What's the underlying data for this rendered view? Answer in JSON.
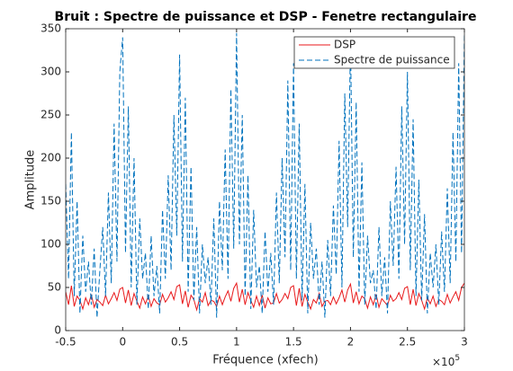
{
  "chart_data": {
    "type": "line",
    "title": "Bruit : Spectre de puissance et DSP - Fenetre rectangulaire",
    "xlabel": "Fréquence (xfech)",
    "ylabel": "Amplitude",
    "x_multiplier": {
      "base": "×10",
      "exponent": "5"
    },
    "xlim": [
      -0.5,
      3
    ],
    "xticks": [
      -0.5,
      0,
      0.5,
      1,
      1.5,
      2,
      2.5,
      3
    ],
    "ylim": [
      0,
      350
    ],
    "yticks": [
      0,
      50,
      100,
      150,
      200,
      250,
      300,
      350
    ],
    "legend": "top-right",
    "x": [
      -0.5,
      -0.475,
      -0.45,
      -0.425,
      -0.4,
      -0.375,
      -0.35,
      -0.325,
      -0.3,
      -0.275,
      -0.25,
      -0.225,
      -0.2,
      -0.175,
      -0.15,
      -0.125,
      -0.1,
      -0.075,
      -0.05,
      -0.025,
      0,
      0.025,
      0.05,
      0.075,
      0.1,
      0.125,
      0.15,
      0.175,
      0.2,
      0.225,
      0.25,
      0.275,
      0.3,
      0.325,
      0.35,
      0.375,
      0.4,
      0.425,
      0.45,
      0.475,
      0.5,
      0.525,
      0.55,
      0.575,
      0.6,
      0.625,
      0.65,
      0.675,
      0.7,
      0.725,
      0.75,
      0.775,
      0.8,
      0.825,
      0.85,
      0.875,
      0.9,
      0.925,
      0.95,
      0.975,
      1,
      1.025,
      1.05,
      1.075,
      1.1,
      1.125,
      1.15,
      1.175,
      1.2,
      1.225,
      1.25,
      1.275,
      1.3,
      1.325,
      1.35,
      1.375,
      1.4,
      1.425,
      1.45,
      1.475,
      1.5,
      1.525,
      1.55,
      1.575,
      1.6,
      1.625,
      1.65,
      1.675,
      1.7,
      1.725,
      1.75,
      1.775,
      1.8,
      1.825,
      1.85,
      1.875,
      1.9,
      1.925,
      1.95,
      1.975,
      2,
      2.025,
      2.05,
      2.075,
      2.1,
      2.125,
      2.15,
      2.175,
      2.2,
      2.225,
      2.25,
      2.275,
      2.3,
      2.325,
      2.35,
      2.375,
      2.4,
      2.425,
      2.45,
      2.475,
      2.5,
      2.525,
      2.55,
      2.575,
      2.6,
      2.625,
      2.65,
      2.675,
      2.7,
      2.725,
      2.75,
      2.775,
      2.8,
      2.825,
      2.85,
      2.875,
      2.9,
      2.925,
      2.95,
      2.975,
      3
    ],
    "series": [
      {
        "name": "DSP",
        "color": "#e8191b",
        "dash": false,
        "values": [
          45,
          30,
          52,
          28,
          40,
          35,
          25,
          38,
          30,
          42,
          27,
          36,
          33,
          29,
          41,
          31,
          37,
          44,
          35,
          48,
          50,
          32,
          47,
          29,
          43,
          34,
          26,
          39,
          31,
          40,
          28,
          37,
          32,
          30,
          42,
          33,
          38,
          45,
          36,
          51,
          53,
          31,
          46,
          27,
          41,
          36,
          24,
          37,
          33,
          44,
          29,
          35,
          34,
          28,
          40,
          30,
          39,
          46,
          34,
          49,
          55,
          33,
          48,
          30,
          44,
          35,
          27,
          40,
          29,
          41,
          26,
          38,
          31,
          32,
          43,
          32,
          36,
          43,
          37,
          50,
          52,
          29,
          49,
          28,
          42,
          33,
          25,
          36,
          32,
          43,
          28,
          34,
          35,
          30,
          39,
          31,
          38,
          47,
          33,
          47,
          54,
          32,
          45,
          31,
          40,
          37,
          26,
          39,
          30,
          42,
          27,
          37,
          33,
          29,
          41,
          34,
          37,
          44,
          36,
          49,
          51,
          30,
          48,
          29,
          43,
          35,
          25,
          38,
          31,
          40,
          28,
          36,
          34,
          30,
          42,
          32,
          39,
          45,
          35,
          50,
          55
        ]
      },
      {
        "name": "Spectre de puissance",
        "color": "#0072bd",
        "dash": true,
        "values": [
          170,
          60,
          230,
          40,
          150,
          20,
          110,
          45,
          80,
          30,
          95,
          15,
          70,
          120,
          40,
          160,
          55,
          240,
          80,
          300,
          340,
          90,
          260,
          50,
          200,
          30,
          130,
          60,
          90,
          25,
          110,
          40,
          75,
          20,
          140,
          60,
          180,
          70,
          250,
          110,
          320,
          80,
          270,
          45,
          190,
          35,
          120,
          20,
          100,
          55,
          85,
          30,
          130,
          15,
          150,
          70,
          210,
          60,
          280,
          95,
          345,
          100,
          250,
          40,
          180,
          25,
          140,
          50,
          75,
          20,
          115,
          45,
          90,
          30,
          160,
          55,
          200,
          85,
          290,
          70,
          310,
          60,
          240,
          35,
          170,
          20,
          125,
          60,
          95,
          30,
          80,
          15,
          105,
          40,
          145,
          65,
          220,
          50,
          275,
          120,
          335,
          85,
          265,
          45,
          195,
          30,
          110,
          55,
          70,
          25,
          120,
          40,
          85,
          20,
          150,
          75,
          190,
          60,
          260,
          100,
          300,
          70,
          245,
          40,
          175,
          35,
          135,
          20,
          90,
          50,
          100,
          30,
          115,
          45,
          165,
          55,
          230,
          80,
          310,
          90,
          345
        ]
      }
    ]
  }
}
